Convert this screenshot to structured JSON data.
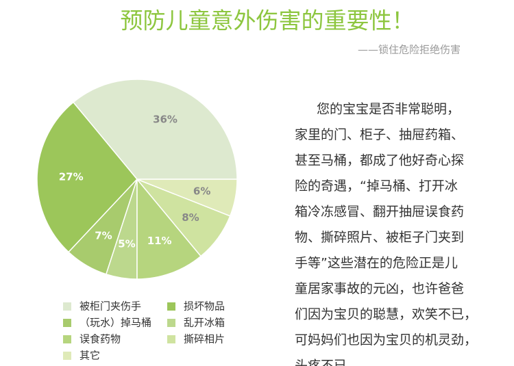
{
  "chart_data": {
    "type": "pie",
    "title": "预防儿童意外伤害的重要性！",
    "subtitle": "——锁住危险拒绝伤害",
    "categories": [
      "被柜门夹伤手",
      "损坏物品",
      "（玩水）掉马桶",
      "乱开冰箱",
      "误食药物",
      "撕碎相片",
      "其它"
    ],
    "values": [
      36,
      27,
      7,
      5,
      11,
      8,
      6
    ],
    "value_labels": [
      "36%",
      "27%",
      "7%",
      "5%",
      "11%",
      "8%",
      "6%"
    ],
    "colors": [
      "#dde9cf",
      "#9cc65a",
      "#a8cb6d",
      "#bcd88d",
      "#b6d57e",
      "#cfe3a0",
      "#dfeab8"
    ]
  },
  "text": {
    "lines": [
      "您的宝宝是否非常聪明，",
      "家里的门、柜子、抽屉药箱、",
      "甚至马桶，都成了他好奇心探",
      "险的奇遇，“掉马桶、打开冰",
      "箱冷冻感冒、翻开抽屉误食药",
      "物、撕碎照片、被柜子门夹到",
      "手等”这些潜在的危险正是儿",
      "童居家事故的元凶，也许爸爸",
      "们因为宝贝的聪慧，欢笑不已，",
      "可妈妈们也因为宝贝的机灵劲，",
      "头疼不已。"
    ]
  }
}
